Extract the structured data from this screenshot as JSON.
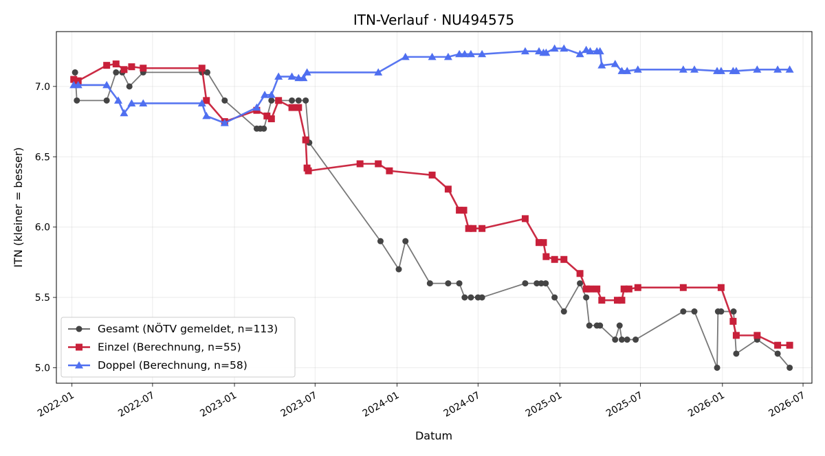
{
  "chart_data": {
    "type": "line",
    "title": "ITN-Verlauf · NU494575",
    "xlabel": "Datum",
    "ylabel": "ITN  (kleiner = besser)",
    "xlim": [
      "2021-11-27",
      "2026-07-21"
    ],
    "ylim": [
      4.89,
      7.39
    ],
    "x_ticks": [
      "2022-01-01",
      "2022-07-01",
      "2023-01-01",
      "2023-07-01",
      "2024-01-01",
      "2024-07-01",
      "2025-01-01",
      "2025-07-01",
      "2026-01-01",
      "2026-07-01"
    ],
    "x_tick_labels": [
      "2022-01",
      "2022-07",
      "2023-01",
      "2023-07",
      "2024-01",
      "2024-07",
      "2025-01",
      "2025-07",
      "2026-01",
      "2026-07"
    ],
    "y_ticks": [
      5.0,
      5.5,
      6.0,
      6.5,
      7.0
    ],
    "y_tick_labels": [
      "5.0",
      "5.5",
      "6.0",
      "6.5",
      "7.0"
    ],
    "grid": true,
    "legend_position": "lower-left",
    "series": [
      {
        "name": "Gesamt (NÖTV gemeldet, n=113)",
        "color": "#444444",
        "marker": "circle",
        "points": [
          [
            "2022-01-08",
            7.1
          ],
          [
            "2022-01-12",
            6.9
          ],
          [
            "2022-03-20",
            6.9
          ],
          [
            "2022-04-10",
            7.1
          ],
          [
            "2022-04-24",
            7.1
          ],
          [
            "2022-05-10",
            7.0
          ],
          [
            "2022-06-10",
            7.1
          ],
          [
            "2022-10-20",
            7.1
          ],
          [
            "2022-11-01",
            7.1
          ],
          [
            "2022-12-10",
            6.9
          ],
          [
            "2023-02-20",
            6.7
          ],
          [
            "2023-02-28",
            6.7
          ],
          [
            "2023-03-08",
            6.7
          ],
          [
            "2023-03-25",
            6.9
          ],
          [
            "2023-05-10",
            6.9
          ],
          [
            "2023-05-25",
            6.9
          ],
          [
            "2023-06-10",
            6.9
          ],
          [
            "2023-06-18",
            6.6
          ],
          [
            "2023-11-25",
            5.9
          ],
          [
            "2024-01-05",
            5.7
          ],
          [
            "2024-01-20",
            5.9
          ],
          [
            "2024-03-15",
            5.6
          ],
          [
            "2024-04-25",
            5.6
          ],
          [
            "2024-05-20",
            5.6
          ],
          [
            "2024-06-01",
            5.5
          ],
          [
            "2024-06-15",
            5.5
          ],
          [
            "2024-07-01",
            5.5
          ],
          [
            "2024-07-10",
            5.5
          ],
          [
            "2024-10-15",
            5.6
          ],
          [
            "2024-11-10",
            5.6
          ],
          [
            "2024-11-20",
            5.6
          ],
          [
            "2024-11-30",
            5.6
          ],
          [
            "2024-12-20",
            5.5
          ],
          [
            "2025-01-10",
            5.4
          ],
          [
            "2025-02-15",
            5.6
          ],
          [
            "2025-03-01",
            5.5
          ],
          [
            "2025-03-08",
            5.3
          ],
          [
            "2025-03-25",
            5.3
          ],
          [
            "2025-04-01",
            5.3
          ],
          [
            "2025-05-05",
            5.2
          ],
          [
            "2025-05-15",
            5.3
          ],
          [
            "2025-05-20",
            5.2
          ],
          [
            "2025-06-01",
            5.2
          ],
          [
            "2025-06-20",
            5.2
          ],
          [
            "2025-10-05",
            5.4
          ],
          [
            "2025-10-30",
            5.4
          ],
          [
            "2025-12-20",
            5.0
          ],
          [
            "2025-12-22",
            5.4
          ],
          [
            "2025-12-29",
            5.4
          ],
          [
            "2026-01-26",
            5.4
          ],
          [
            "2026-02-01",
            5.1
          ],
          [
            "2026-03-20",
            5.2
          ],
          [
            "2026-05-05",
            5.1
          ],
          [
            "2026-06-01",
            5.0
          ]
        ]
      },
      {
        "name": "Einzel (Berechnung, n=55)",
        "color": "#c8203a",
        "marker": "square",
        "points": [
          [
            "2022-01-05",
            7.05
          ],
          [
            "2022-01-15",
            7.04
          ],
          [
            "2022-03-20",
            7.15
          ],
          [
            "2022-04-10",
            7.16
          ],
          [
            "2022-04-28",
            7.12
          ],
          [
            "2022-05-15",
            7.14
          ],
          [
            "2022-06-10",
            7.13
          ],
          [
            "2022-10-20",
            7.13
          ],
          [
            "2022-10-30",
            6.9
          ],
          [
            "2022-12-10",
            6.75
          ],
          [
            "2023-02-20",
            6.83
          ],
          [
            "2023-03-15",
            6.79
          ],
          [
            "2023-03-25",
            6.77
          ],
          [
            "2023-04-10",
            6.9
          ],
          [
            "2023-05-10",
            6.85
          ],
          [
            "2023-05-25",
            6.85
          ],
          [
            "2023-06-10",
            6.62
          ],
          [
            "2023-06-13",
            6.42
          ],
          [
            "2023-06-16",
            6.4
          ],
          [
            "2023-10-10",
            6.45
          ],
          [
            "2023-11-20",
            6.45
          ],
          [
            "2023-12-15",
            6.4
          ],
          [
            "2024-03-20",
            6.37
          ],
          [
            "2024-04-25",
            6.27
          ],
          [
            "2024-05-20",
            6.12
          ],
          [
            "2024-05-30",
            6.12
          ],
          [
            "2024-06-10",
            5.99
          ],
          [
            "2024-06-20",
            5.99
          ],
          [
            "2024-07-10",
            5.99
          ],
          [
            "2024-10-15",
            6.06
          ],
          [
            "2024-11-15",
            5.89
          ],
          [
            "2024-11-25",
            5.89
          ],
          [
            "2024-12-01",
            5.79
          ],
          [
            "2024-12-20",
            5.77
          ],
          [
            "2025-01-10",
            5.77
          ],
          [
            "2025-02-15",
            5.67
          ],
          [
            "2025-03-01",
            5.56
          ],
          [
            "2025-03-10",
            5.56
          ],
          [
            "2025-03-25",
            5.56
          ],
          [
            "2025-04-05",
            5.48
          ],
          [
            "2025-05-10",
            5.48
          ],
          [
            "2025-05-20",
            5.48
          ],
          [
            "2025-05-25",
            5.56
          ],
          [
            "2025-06-05",
            5.56
          ],
          [
            "2025-06-25",
            5.57
          ],
          [
            "2025-10-05",
            5.57
          ],
          [
            "2025-12-29",
            5.57
          ],
          [
            "2026-01-25",
            5.33
          ],
          [
            "2026-02-01",
            5.23
          ],
          [
            "2026-03-20",
            5.23
          ],
          [
            "2026-05-05",
            5.16
          ],
          [
            "2026-06-01",
            5.16
          ]
        ]
      },
      {
        "name": "Doppel (Berechnung, n=58)",
        "color": "#4f6ff0",
        "marker": "triangle",
        "points": [
          [
            "2022-01-05",
            7.01
          ],
          [
            "2022-01-15",
            7.01
          ],
          [
            "2022-03-20",
            7.01
          ],
          [
            "2022-04-15",
            6.9
          ],
          [
            "2022-04-28",
            6.81
          ],
          [
            "2022-05-15",
            6.88
          ],
          [
            "2022-06-10",
            6.88
          ],
          [
            "2022-10-20",
            6.88
          ],
          [
            "2022-10-30",
            6.79
          ],
          [
            "2022-12-10",
            6.74
          ],
          [
            "2023-02-20",
            6.85
          ],
          [
            "2023-03-10",
            6.94
          ],
          [
            "2023-03-25",
            6.94
          ],
          [
            "2023-04-10",
            7.07
          ],
          [
            "2023-05-10",
            7.07
          ],
          [
            "2023-05-25",
            7.06
          ],
          [
            "2023-06-05",
            7.06
          ],
          [
            "2023-06-13",
            7.1
          ],
          [
            "2023-11-20",
            7.1
          ],
          [
            "2024-01-20",
            7.21
          ],
          [
            "2024-03-20",
            7.21
          ],
          [
            "2024-04-25",
            7.21
          ],
          [
            "2024-05-20",
            7.23
          ],
          [
            "2024-06-01",
            7.23
          ],
          [
            "2024-06-15",
            7.23
          ],
          [
            "2024-07-10",
            7.23
          ],
          [
            "2024-10-15",
            7.25
          ],
          [
            "2024-11-15",
            7.25
          ],
          [
            "2024-11-25",
            7.24
          ],
          [
            "2024-12-01",
            7.24
          ],
          [
            "2024-12-20",
            7.27
          ],
          [
            "2025-01-10",
            7.27
          ],
          [
            "2025-02-15",
            7.23
          ],
          [
            "2025-03-01",
            7.26
          ],
          [
            "2025-03-10",
            7.25
          ],
          [
            "2025-03-25",
            7.25
          ],
          [
            "2025-04-01",
            7.25
          ],
          [
            "2025-04-05",
            7.15
          ],
          [
            "2025-05-05",
            7.16
          ],
          [
            "2025-05-20",
            7.11
          ],
          [
            "2025-06-01",
            7.11
          ],
          [
            "2025-06-25",
            7.12
          ],
          [
            "2025-10-05",
            7.12
          ],
          [
            "2025-10-30",
            7.12
          ],
          [
            "2025-12-20",
            7.11
          ],
          [
            "2025-12-29",
            7.11
          ],
          [
            "2026-01-25",
            7.11
          ],
          [
            "2026-02-01",
            7.11
          ],
          [
            "2026-03-20",
            7.12
          ],
          [
            "2026-05-05",
            7.12
          ],
          [
            "2026-06-01",
            7.12
          ]
        ]
      }
    ]
  }
}
